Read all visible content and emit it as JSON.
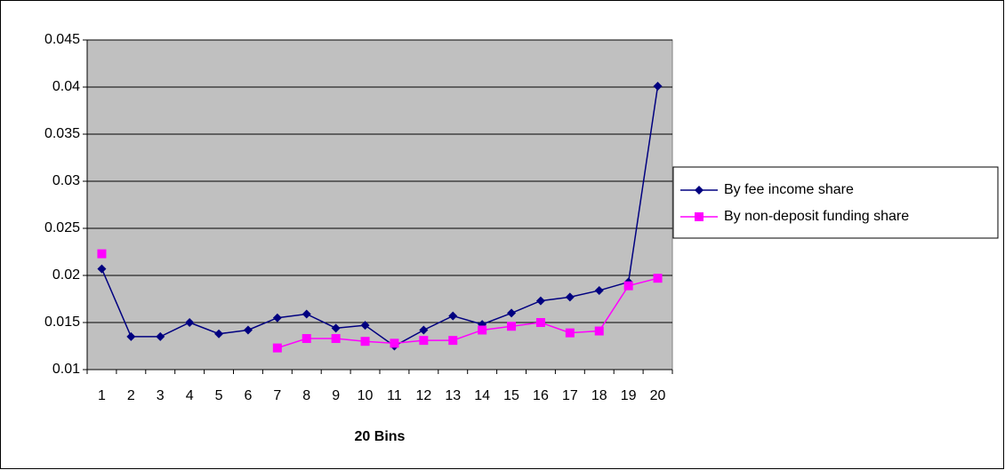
{
  "chart_data": {
    "type": "line",
    "x_label": "20 Bins",
    "categories": [
      "1",
      "2",
      "3",
      "4",
      "5",
      "6",
      "7",
      "8",
      "9",
      "10",
      "11",
      "12",
      "13",
      "14",
      "15",
      "16",
      "17",
      "18",
      "19",
      "20"
    ],
    "series": [
      {
        "name": "By fee  income share",
        "color": "#000080",
        "marker": "diamond",
        "values": [
          0.0207,
          0.0135,
          0.0135,
          0.015,
          0.0138,
          0.0142,
          0.0155,
          0.0159,
          0.0144,
          0.0147,
          0.0125,
          0.0142,
          0.0157,
          0.0148,
          0.016,
          0.0173,
          0.0177,
          0.0184,
          0.0193,
          0.0401
        ]
      },
      {
        "name": "By non-deposit funding share",
        "color": "#FF00FF",
        "marker": "square",
        "values": [
          0.0223,
          null,
          null,
          null,
          null,
          null,
          0.0123,
          0.0133,
          0.0133,
          0.013,
          0.0128,
          0.0131,
          0.0131,
          0.0142,
          0.0146,
          0.015,
          0.0139,
          0.0141,
          0.0189,
          0.0197
        ]
      }
    ],
    "ylim": [
      0.01,
      0.045
    ],
    "yticks": [
      0.01,
      0.015,
      0.02,
      0.025,
      0.03,
      0.035,
      0.04,
      0.045
    ],
    "grid": true,
    "legend": "right"
  }
}
